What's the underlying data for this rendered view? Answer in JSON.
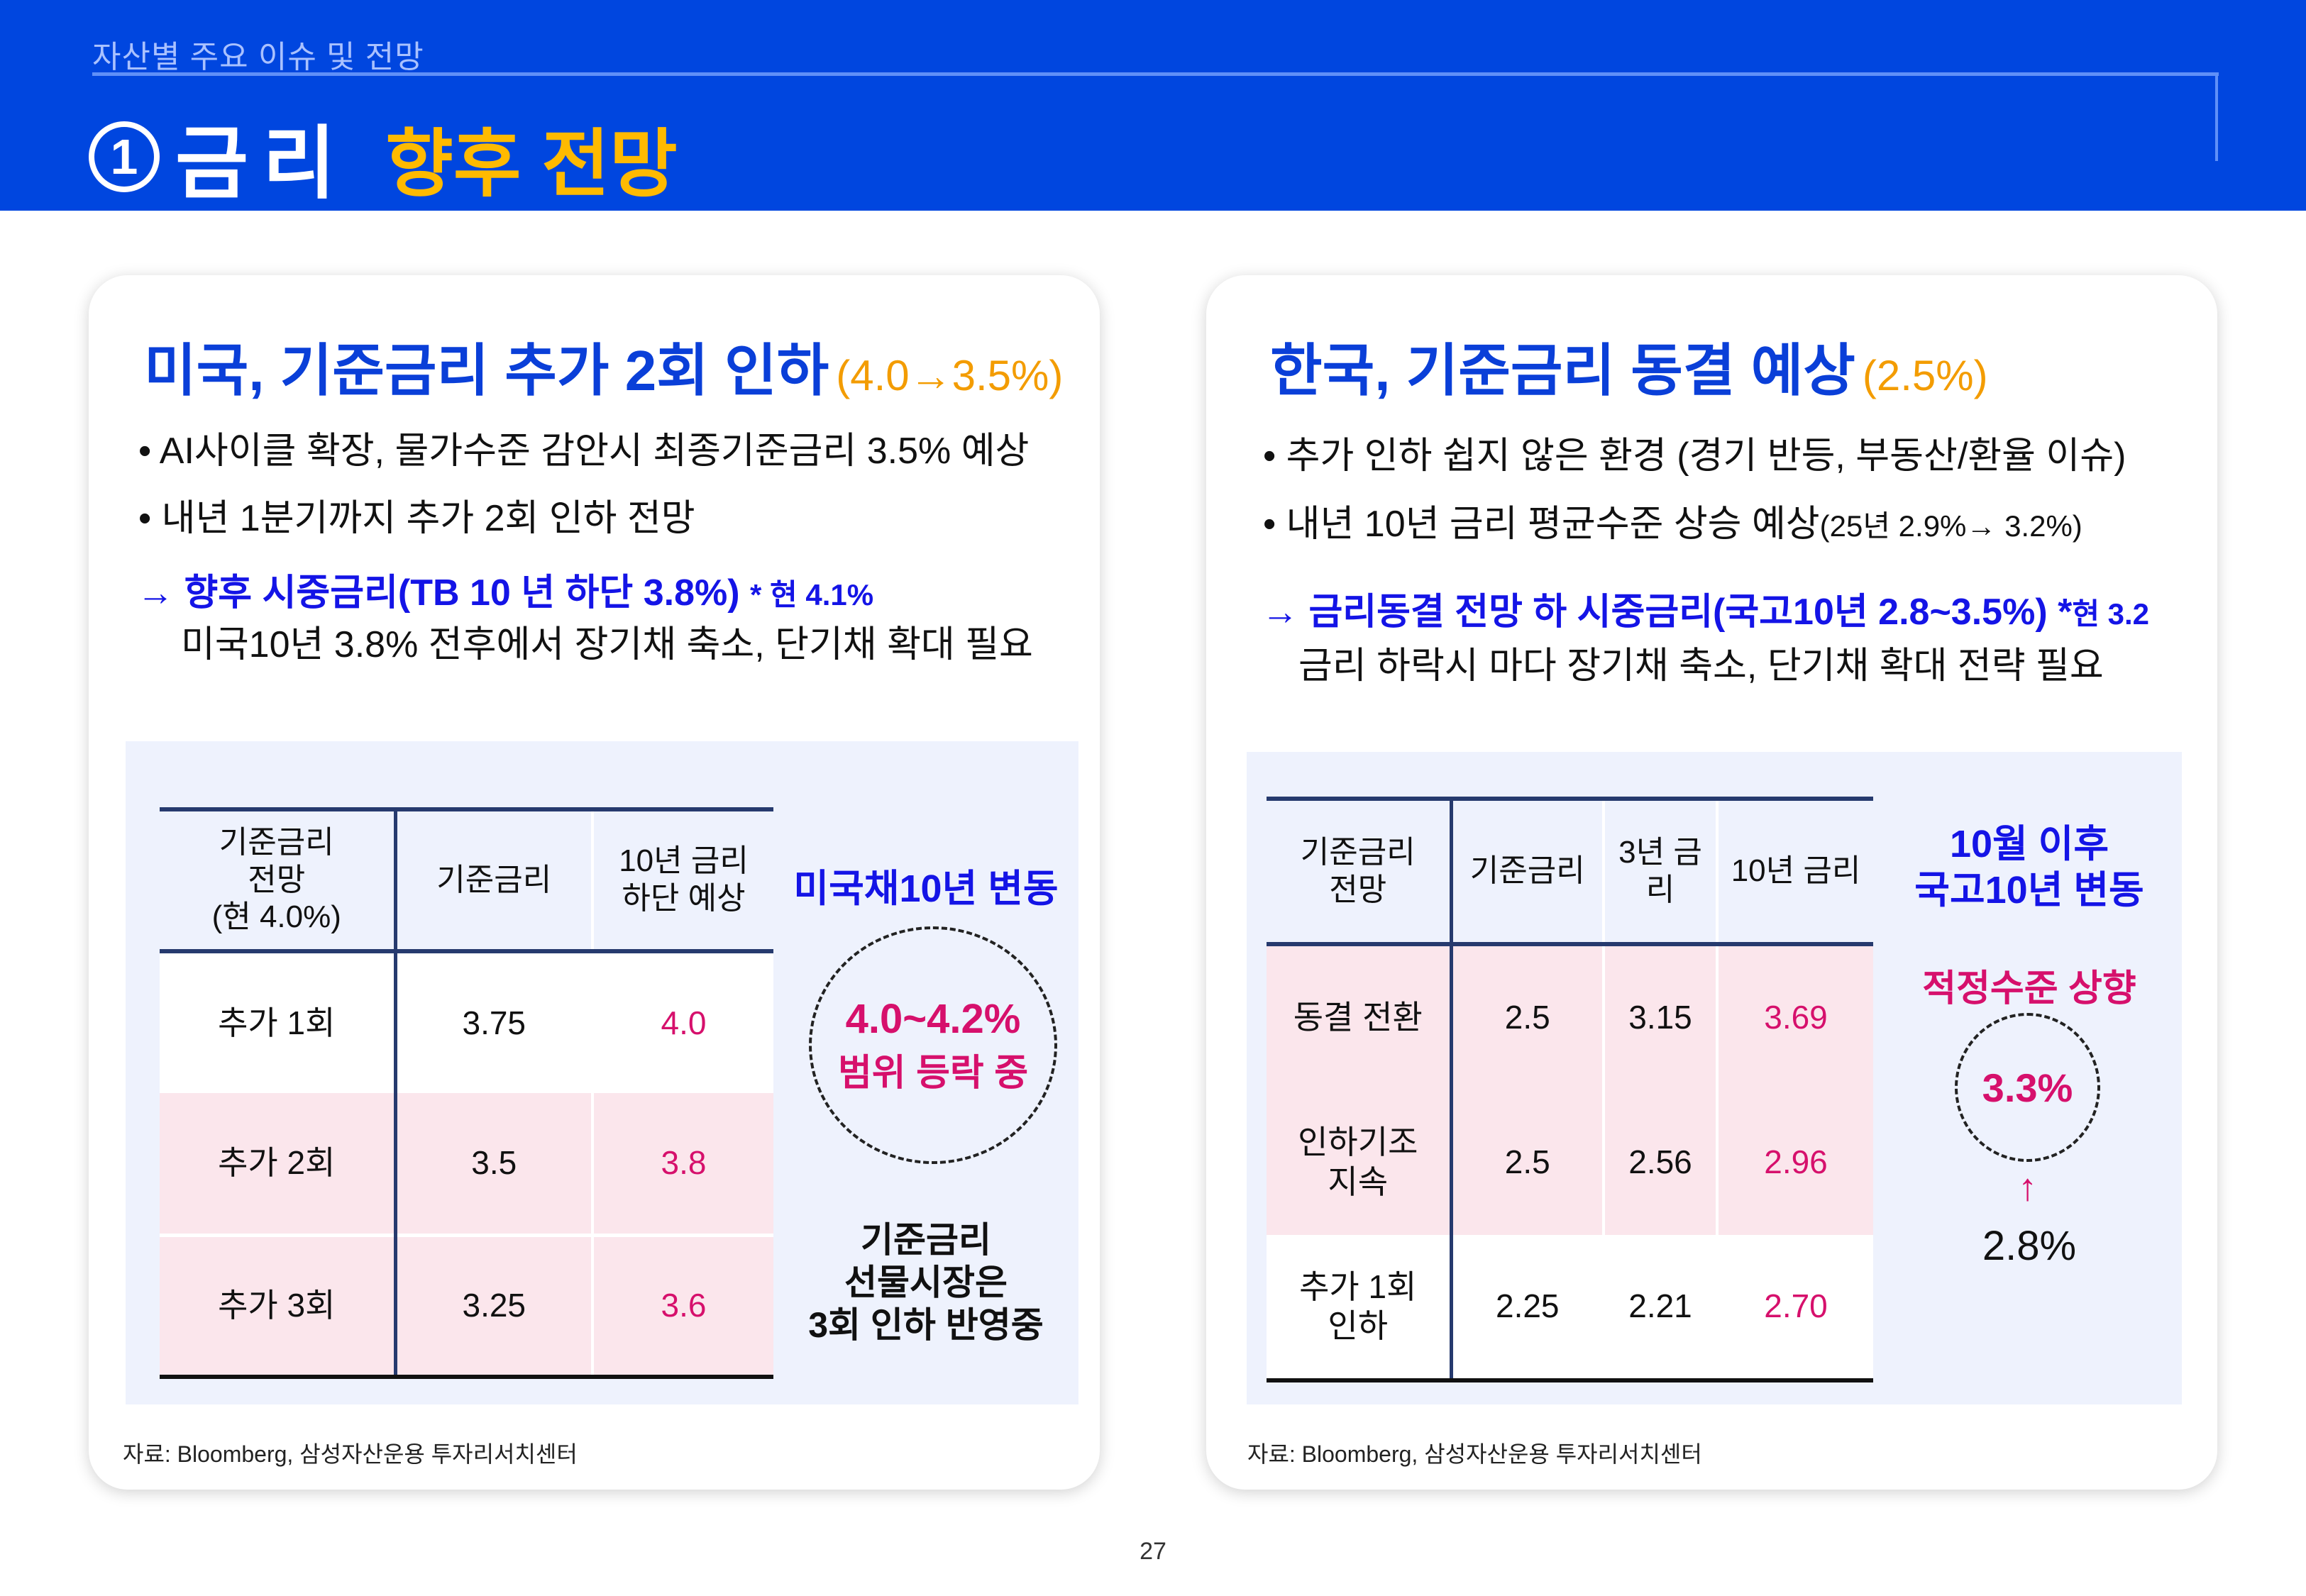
{
  "header": {
    "breadcrumb": "자산별 주요 이슈 및 전망",
    "number": "①",
    "title_main": "금리",
    "title_sub": "향후 전망"
  },
  "us": {
    "heading": "미국, 기준금리 추가 2회 인하",
    "heading_note": "(4.0→3.5%)",
    "bullets": [
      "• AI사이클 확장, 물가수준 감안시 최종기준금리 3.5% 예상",
      "• 내년 1분기까지 추가 2회 인하 전망"
    ],
    "arrow_text": "→ 향후 시중금리(TB 10 년 하단 3.8%)",
    "arrow_note": "* 현 4.1%",
    "arrow_sub": "미국10년 3.8% 전후에서 장기채 축소, 단기채 확대 필요",
    "table": {
      "headers": [
        "기준금리\n전망\n(현 4.0%)",
        "기준금리",
        "10년 금리\n하단 예상"
      ],
      "rows": [
        [
          "추가 1회",
          "3.75",
          "4.0"
        ],
        [
          "추가 2회",
          "3.5",
          "3.8"
        ],
        [
          "추가 3회",
          "3.25",
          "3.6"
        ]
      ]
    },
    "side_title": "미국채10년 변동",
    "circle_line1": "4.0~4.2%",
    "circle_line2": "범위 등락 중",
    "side_note": "기준금리\n선물시장은\n3회 인하 반영중",
    "source": "자료: Bloomberg, 삼성자산운용 투자리서치센터"
  },
  "kr": {
    "heading": "한국, 기준금리 동결 예상",
    "heading_note": "(2.5%)",
    "bullets": [
      "• 추가 인하 쉽지 않은 환경 (경기 반등, 부동산/환율 이슈)",
      "• 내년 10년 금리 평균수준 상승 예상"
    ],
    "bullet2_note": "(25년 2.9%→ 3.2%)",
    "arrow_text": "→ 금리동결 전망 하 시중금리(국고10년 2.8~3.5%) *",
    "arrow_note": "현 3.2",
    "arrow_sub": "금리 하락시 마다 장기채 축소, 단기채 확대 전략 필요",
    "table": {
      "headers": [
        "기준금리\n전망",
        "기준금리",
        "3년 금리",
        "10년 금리"
      ],
      "rows": [
        [
          "동결 전환",
          "2.5",
          "3.15",
          "3.69"
        ],
        [
          "인하기조\n지속",
          "2.5",
          "2.56",
          "2.96"
        ],
        [
          "추가 1회\n인하",
          "2.25",
          "2.21",
          "2.70"
        ]
      ]
    },
    "side_title": "10월 이후\n국고10년 변동",
    "side_sub": "적정수준 상향",
    "circle_value": "3.3%",
    "arrow_up": "↑",
    "from_value": "2.8%",
    "source": "자료: Bloomberg, 삼성자산운용 투자리서치센터"
  },
  "page_number": "27",
  "colors": {
    "header_bg": "#0046df",
    "accent_yellow": "#ffba00",
    "heading_blue": "#0a3fd8",
    "note_orange": "#f39c00",
    "value_pink": "#d6106c",
    "panel_bg": "#eef2fd",
    "row_pink": "#fbe6ec"
  }
}
